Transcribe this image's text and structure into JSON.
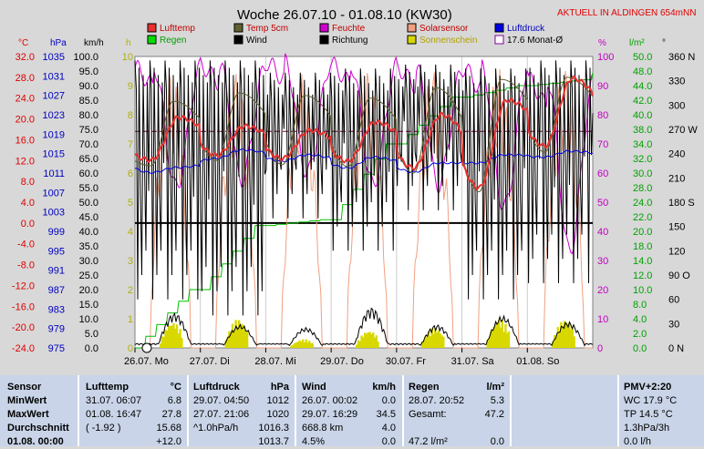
{
  "chart_data": {
    "type": "line",
    "title": "Woche 26.07.10 - 01.08.10 (KW30)",
    "annotation": "AKTUELL IN ALDINGEN 654mNN",
    "x_ticks": [
      "26.07.  Mo",
      "27.07.  Di",
      "28.07.  Mi",
      "29.07.  Do",
      "30.07.  Fr",
      "31.07.  Sa",
      "01.08.  So"
    ],
    "n_points": 336,
    "axes": [
      {
        "unit": "°C",
        "color": "#e00000",
        "ticks": [
          "32.0",
          "28.0",
          "24.0",
          "20.0",
          "16.0",
          "12.0",
          "8.0",
          "4.0",
          "0.0",
          "-4.0",
          "-8.0",
          "-12.0",
          "-16.0",
          "-20.0",
          "-24.0"
        ]
      },
      {
        "unit": "hPa",
        "color": "#0000c0",
        "ticks": [
          "1035",
          "1031",
          "1027",
          "1023",
          "1019",
          "1015",
          "1011",
          "1007",
          "1003",
          "999",
          "995",
          "991",
          "987",
          "983",
          "979",
          "975"
        ]
      },
      {
        "unit": "km/h",
        "color": "#000000",
        "ticks": [
          "100.0",
          "95.0",
          "90.0",
          "85.0",
          "80.0",
          "75.0",
          "70.0",
          "65.0",
          "60.0",
          "55.0",
          "50.0",
          "45.0",
          "40.0",
          "35.0",
          "30.0",
          "25.0",
          "20.0",
          "15.0",
          "10.0",
          "5.0",
          "0.0"
        ]
      },
      {
        "unit": "h",
        "color": "#b0b000",
        "ticks": [
          "10",
          "9",
          "8",
          "7",
          "6",
          "5",
          "4",
          "3",
          "2",
          "1",
          "0"
        ]
      },
      {
        "unit": "%",
        "color": "#c000c0",
        "ticks": [
          "100",
          "90",
          "80",
          "70",
          "60",
          "50",
          "40",
          "30",
          "20",
          "10",
          "0"
        ]
      },
      {
        "unit": "l/m²",
        "color": "#00a000",
        "ticks": [
          "50.0",
          "48.0",
          "44.0",
          "42.0",
          "40.0",
          "38.0",
          "34.0",
          "32.0",
          "30.0",
          "28.0",
          "24.0",
          "22.0",
          "20.0",
          "18.0",
          "14.0",
          "12.0",
          "10.0",
          "8.0",
          "4.0",
          "2.0",
          "0.0"
        ]
      },
      {
        "unit": "°",
        "color": "#000000",
        "ticks": [
          "360 N",
          "330",
          "300",
          "270 W",
          "240",
          "210",
          "180 S",
          "150",
          "120",
          "90 O",
          "60",
          "30",
          "0 N"
        ]
      }
    ],
    "legend": [
      {
        "name": "Lufttemp",
        "color": "#e83030"
      },
      {
        "name": "Temp 5cm",
        "color": "#606030"
      },
      {
        "name": "Feuchte",
        "color": "#d000d0"
      },
      {
        "name": "Solarsensor",
        "color": "#f0a080"
      },
      {
        "name": "Luftdruck",
        "color": "#0000e0"
      },
      {
        "name": "Regen",
        "color": "#00e000"
      },
      {
        "name": "Wind",
        "color": "#000000"
      },
      {
        "name": "Richtung",
        "color": "#000000"
      },
      {
        "name": "Sonnenschein",
        "color": "#d8d800"
      },
      {
        "name": "17.6 Monat-Ø",
        "color": "#8000a0"
      }
    ],
    "monthly_mean_temp": 17.6,
    "zero_line_temp": 0.0,
    "series": [
      {
        "name": "Lufttemp",
        "unit": "°C",
        "daily": [
          {
            "min": 12.1,
            "max": 20.3
          },
          {
            "min": 13.0,
            "max": 18.6
          },
          {
            "min": 12.4,
            "max": 17.8
          },
          {
            "min": 11.9,
            "max": 19.4
          },
          {
            "min": 10.6,
            "max": 20.8
          },
          {
            "min": 6.8,
            "max": 23.6
          },
          {
            "min": 14.8,
            "max": 27.8
          }
        ],
        "end": 15.2
      },
      {
        "name": "Temp 5cm",
        "unit": "°C",
        "daily": [
          {
            "min": 11.0,
            "max": 23.4
          },
          {
            "min": 12.0,
            "max": 25.0
          },
          {
            "min": 11.2,
            "max": 24.5
          },
          {
            "min": 10.8,
            "max": 24.0
          },
          {
            "min": 9.6,
            "max": 26.0
          },
          {
            "min": 6.0,
            "max": 27.6
          },
          {
            "min": 13.6,
            "max": 28.0
          }
        ],
        "end": 14.8
      },
      {
        "name": "Luftdruck",
        "unit": "hPa",
        "daily": [
          {
            "min": 1013.5,
            "max": 1014.6
          },
          {
            "min": 1016.6,
            "max": 1018.5
          },
          {
            "min": 1016.0,
            "max": 1017.4
          },
          {
            "min": 1014.5,
            "max": 1016.9
          },
          {
            "min": 1013.6,
            "max": 1015.6
          },
          {
            "min": 1015.6,
            "max": 1017.4
          },
          {
            "min": 1016.9,
            "max": 1018.2
          }
        ],
        "end": 1016.7
      },
      {
        "name": "Feuchte",
        "unit": "%",
        "daily": [
          {
            "min": 55,
            "max": 96
          },
          {
            "min": 58,
            "max": 97
          },
          {
            "min": 60,
            "max": 98
          },
          {
            "min": 56,
            "max": 97
          },
          {
            "min": 56,
            "max": 96
          },
          {
            "min": 48,
            "max": 96
          },
          {
            "min": 33,
            "max": 92
          }
        ],
        "end": 70
      },
      {
        "name": "Regen",
        "unit": "l/m²",
        "cumulative_end_of_day": [
          10.0,
          21.0,
          22.0,
          35.0,
          43.0,
          45.0,
          46.0
        ],
        "end": 47.2
      },
      {
        "name": "Sonnenschein",
        "unit": "h",
        "daily_peak": [
          0.9,
          1.0,
          0.3,
          0.6,
          0.7,
          1.0,
          1.0
        ]
      },
      {
        "name": "Solarsensor",
        "unit": "%",
        "daily_peak": [
          96,
          95,
          94,
          96,
          96,
          96,
          97
        ]
      },
      {
        "name": "Wind",
        "unit": "km/h",
        "daily_peak": [
          12,
          8,
          7,
          14,
          8,
          11,
          9
        ]
      },
      {
        "name": "Richtung",
        "unit": "°",
        "daily": [
          {
            "min": 60,
            "max": 355
          },
          {
            "min": 40,
            "max": 355
          },
          {
            "min": 160,
            "max": 340
          },
          {
            "min": 120,
            "max": 345
          },
          {
            "min": 170,
            "max": 350
          },
          {
            "min": 60,
            "max": 345
          },
          {
            "min": 80,
            "max": 355
          }
        ],
        "end": 290
      }
    ]
  },
  "table": {
    "sensor": {
      "header": "Sensor",
      "rows": [
        "MinWert",
        "MaxWert",
        "Durchschnitt",
        "01.08. 00:00"
      ]
    },
    "lufttemp": {
      "header": "Lufttemp",
      "unit": "°C",
      "rows": [
        [
          "31.07.  06:07",
          "6.8"
        ],
        [
          "01.08.  16:47",
          "27.8"
        ],
        [
          "( -1.92 )",
          "15.68"
        ],
        [
          "",
          "+12.0"
        ]
      ]
    },
    "luftdruck": {
      "header": "Luftdruck",
      "unit": "hPa",
      "rows": [
        [
          "29.07.  04:50",
          "1012"
        ],
        [
          "27.07.  21:06",
          "1020"
        ],
        [
          "^1.0hPa/h",
          "1016.3"
        ],
        [
          "",
          "1013.7"
        ]
      ]
    },
    "wind": {
      "header": "Wind",
      "unit": "km/h",
      "rows": [
        [
          "26.07.  00:02",
          "0.0"
        ],
        [
          "29.07.  16:29",
          "34.5"
        ],
        [
          "668.8 km",
          "4.0"
        ],
        [
          "4.5%",
          "0.0"
        ]
      ]
    },
    "regen": {
      "header": "Regen",
      "unit": "l/m²",
      "rows": [
        [
          "28.07.  20:52",
          "5.3"
        ],
        [
          "Gesamt:",
          "47.2"
        ],
        [
          "",
          ""
        ],
        [
          "47.2 l/m²",
          "0.0"
        ]
      ]
    },
    "pmv": {
      "header": "PMV+2:20",
      "rows": [
        "WC 17.9 °C",
        "TP 14.5 °C",
        "1.3hPa/3h",
        "0.0 l/h"
      ]
    }
  }
}
